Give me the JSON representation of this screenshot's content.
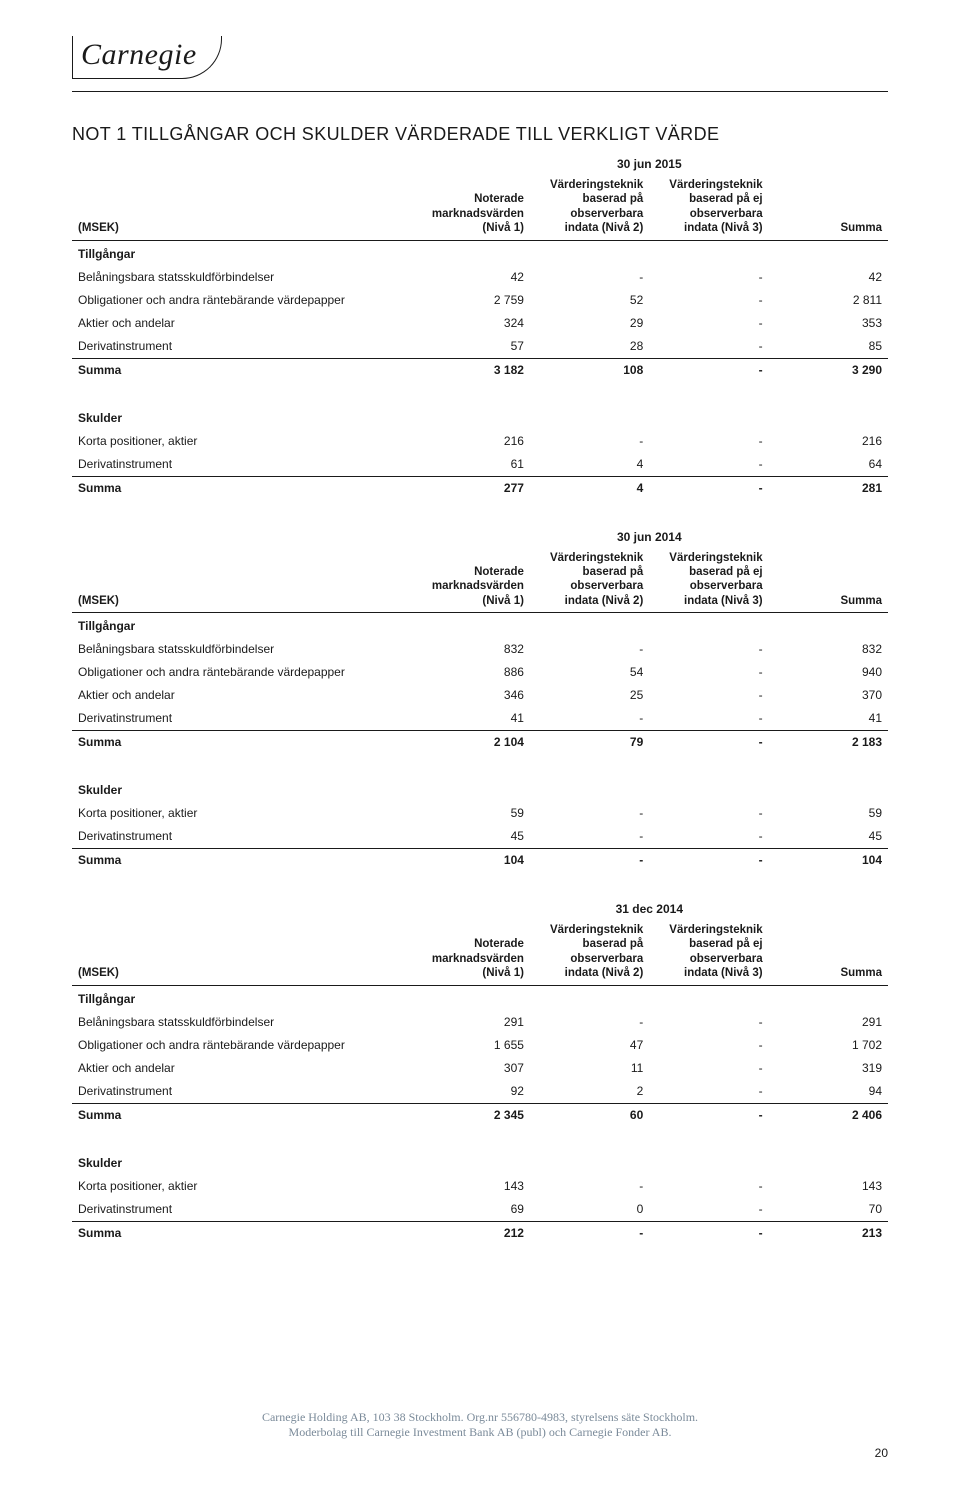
{
  "logo_text": "Carnegie",
  "title": "NOT 1 TILLGÅNGAR OCH SKULDER VÄRDERADE TILL VERKLIGT VÄRDE",
  "column_headers": {
    "msek": "(MSEK)",
    "c1": "Noterade marknadsvärden (Nivå 1)",
    "c2": "Värderingsteknik baserad på observerbara indata (Nivå 2)",
    "c3": "Värderingsteknik baserad på ej observerbara indata (Nivå 3)",
    "c4": "Summa"
  },
  "row_labels": {
    "tillgangar": "Tillgångar",
    "belaningsbara": "Belåningsbara statsskuldförbindelser",
    "obligationer": "Obligationer och andra räntebärande värdepapper",
    "aktier": "Aktier och andelar",
    "derivat": "Derivatinstrument",
    "summa": "Summa",
    "skulder": "Skulder",
    "korta": "Korta positioner, aktier"
  },
  "tables": [
    {
      "date": "30 jun 2015",
      "assets": [
        [
          "42",
          "-",
          "-",
          "42"
        ],
        [
          "2 759",
          "52",
          "-",
          "2 811"
        ],
        [
          "324",
          "29",
          "-",
          "353"
        ],
        [
          "57",
          "28",
          "-",
          "85"
        ]
      ],
      "assets_sum": [
        "3 182",
        "108",
        "-",
        "3 290"
      ],
      "liab": [
        [
          "216",
          "-",
          "-",
          "216"
        ],
        [
          "61",
          "4",
          "-",
          "64"
        ]
      ],
      "liab_sum": [
        "277",
        "4",
        "-",
        "281"
      ]
    },
    {
      "date": "30 jun 2014",
      "assets": [
        [
          "832",
          "-",
          "-",
          "832"
        ],
        [
          "886",
          "54",
          "-",
          "940"
        ],
        [
          "346",
          "25",
          "-",
          "370"
        ],
        [
          "41",
          "-",
          "-",
          "41"
        ]
      ],
      "assets_sum": [
        "2 104",
        "79",
        "-",
        "2 183"
      ],
      "liab": [
        [
          "59",
          "-",
          "-",
          "59"
        ],
        [
          "45",
          "-",
          "-",
          "45"
        ]
      ],
      "liab_sum": [
        "104",
        "-",
        "-",
        "104"
      ]
    },
    {
      "date": "31 dec 2014",
      "assets": [
        [
          "291",
          "-",
          "-",
          "291"
        ],
        [
          "1 655",
          "47",
          "-",
          "1 702"
        ],
        [
          "307",
          "11",
          "-",
          "319"
        ],
        [
          "92",
          "2",
          "-",
          "94"
        ]
      ],
      "assets_sum": [
        "2 345",
        "60",
        "-",
        "2 406"
      ],
      "liab": [
        [
          "143",
          "-",
          "-",
          "143"
        ],
        [
          "69",
          "0",
          "-",
          "70"
        ]
      ],
      "liab_sum": [
        "212",
        "-",
        "-",
        "213"
      ]
    }
  ],
  "footer": {
    "line1": "Carnegie Holding AB, 103 38 Stockholm. Org.nr 556780-4983, styrelsens säte Stockholm.",
    "line2": "Moderbolag till Carnegie Investment Bank AB (publ) och Carnegie Fonder AB.",
    "page": "20"
  },
  "colors": {
    "text": "#1a1a1a",
    "footer": "#7a8a99",
    "bg": "#ffffff"
  },
  "fontsizes": {
    "title": 18,
    "table": 12,
    "header": 11.5,
    "footer": 12
  }
}
